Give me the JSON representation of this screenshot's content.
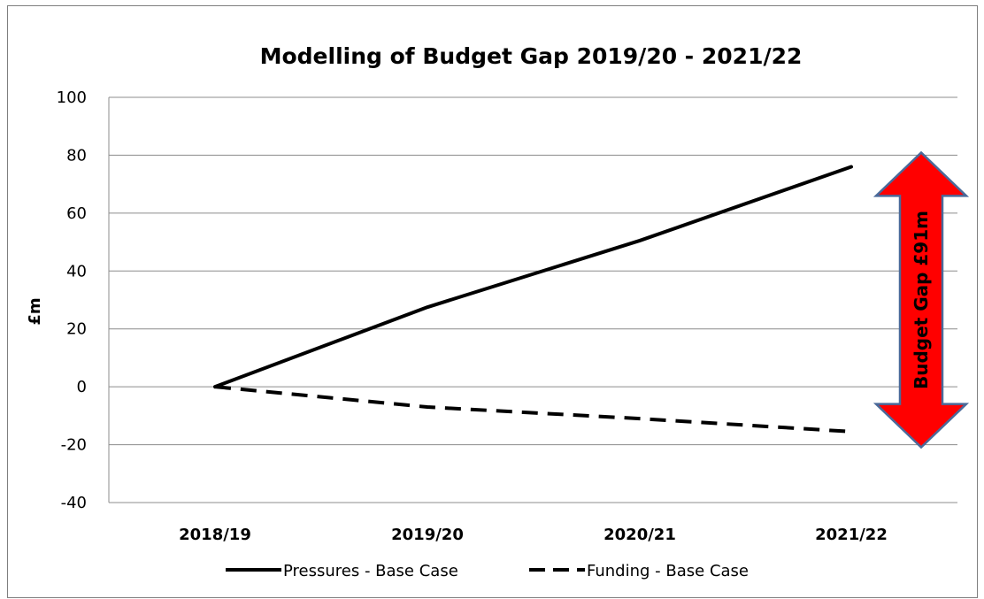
{
  "chart_data": {
    "type": "line",
    "title": "Modelling of Budget Gap 2019/20 - 2021/22",
    "ylabel": "£m",
    "xlabel": "",
    "categories": [
      "2018/19",
      "2019/20",
      "2020/21",
      "2021/22"
    ],
    "ylim": [
      -40,
      100
    ],
    "yticks": [
      100,
      80,
      60,
      40,
      20,
      0,
      -20,
      -40
    ],
    "grid": true,
    "legend_position": "bottom",
    "series": [
      {
        "name": "Pressures - Base Case",
        "values": [
          0,
          27.5,
          50.5,
          76
        ],
        "style": "solid",
        "color": "#000000"
      },
      {
        "name": "Funding - Base Case",
        "values": [
          0,
          -7,
          -11,
          -15.5
        ],
        "style": "dashed",
        "color": "#000000"
      }
    ],
    "annotation": {
      "text": "Budget Gap £91m",
      "from": 80,
      "to": -20,
      "fill_color": "#ff0000",
      "border_color": "#4a6a9a"
    }
  }
}
